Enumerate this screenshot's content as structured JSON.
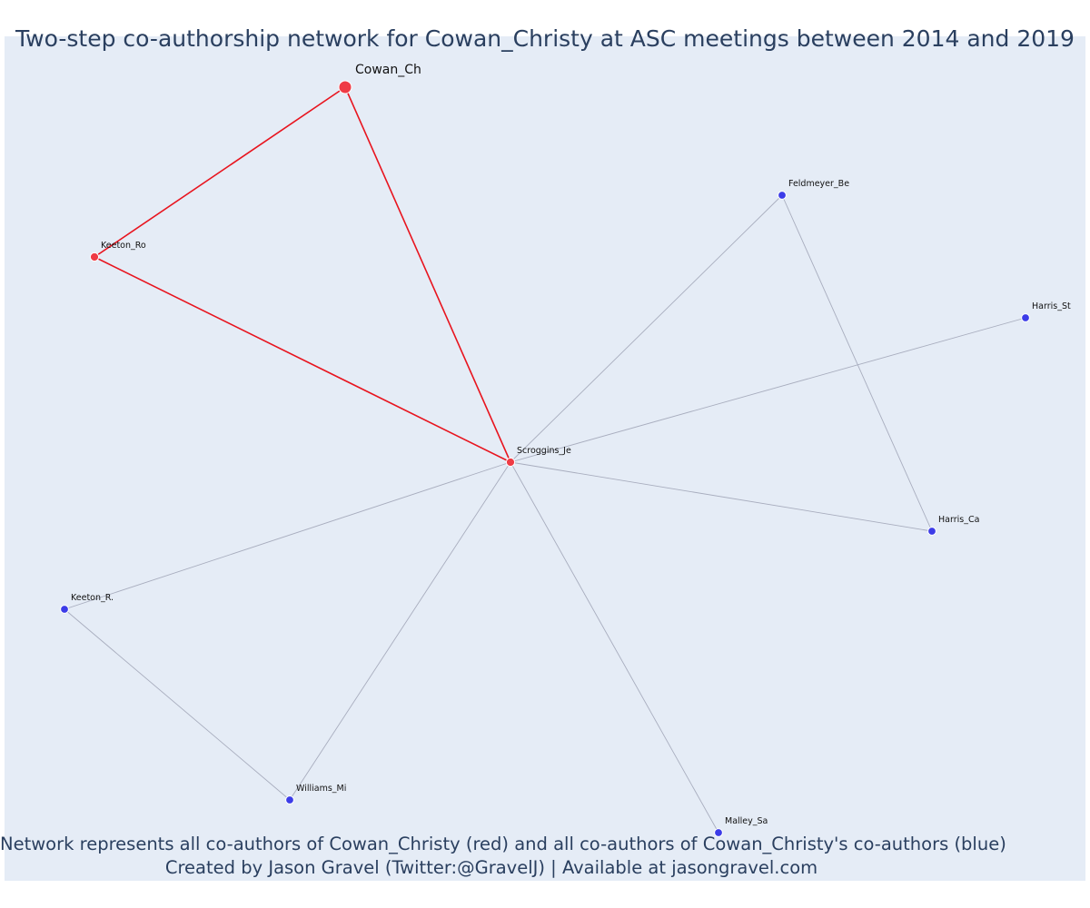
{
  "title": "Two-step co-authorship network for Cowan_Christy at ASC meetings between 2014 and 2019",
  "footer": {
    "line1": "Network represents all co-authors of Cowan_Christy (red) and all co-authors of Cowan_Christy's co-authors (blue)",
    "line2": "Created by Jason Gravel (Twitter:@GravelJ) | Available at jasongravel.com"
  },
  "colors": {
    "background": "#e5ecf6",
    "focal_edge": "#e8141e",
    "other_edge": "#a8adbe",
    "red_node": "#ef3b45",
    "blue_node": "#3c3ce8",
    "text": "#2a3f5f"
  },
  "chart_data": {
    "type": "network",
    "focal_author": "Cowan_Ch",
    "nodes": [
      {
        "id": "Cowan_Ch",
        "group": "focal"
      },
      {
        "id": "Keeton_Ro",
        "group": "coauthor"
      },
      {
        "id": "Scroggins_Je",
        "group": "coauthor"
      },
      {
        "id": "Feldmeyer_Be",
        "group": "second_step"
      },
      {
        "id": "Harris_St",
        "group": "second_step"
      },
      {
        "id": "Harris_Ca",
        "group": "second_step"
      },
      {
        "id": "Keeton_R.",
        "group": "second_step"
      },
      {
        "id": "Williams_Mi",
        "group": "second_step"
      },
      {
        "id": "Malley_Sa",
        "group": "second_step"
      }
    ],
    "edges": [
      {
        "source": "Cowan_Ch",
        "target": "Keeton_Ro",
        "focal": true
      },
      {
        "source": "Cowan_Ch",
        "target": "Scroggins_Je",
        "focal": true
      },
      {
        "source": "Keeton_Ro",
        "target": "Scroggins_Je",
        "focal": true
      },
      {
        "source": "Scroggins_Je",
        "target": "Feldmeyer_Be",
        "focal": false
      },
      {
        "source": "Scroggins_Je",
        "target": "Harris_St",
        "focal": false
      },
      {
        "source": "Scroggins_Je",
        "target": "Harris_Ca",
        "focal": false
      },
      {
        "source": "Scroggins_Je",
        "target": "Keeton_R.",
        "focal": false
      },
      {
        "source": "Scroggins_Je",
        "target": "Williams_Mi",
        "focal": false
      },
      {
        "source": "Scroggins_Je",
        "target": "Malley_Sa",
        "focal": false
      },
      {
        "source": "Feldmeyer_Be",
        "target": "Harris_Ca",
        "focal": false
      },
      {
        "source": "Keeton_R.",
        "target": "Williams_Mi",
        "focal": false
      }
    ]
  }
}
